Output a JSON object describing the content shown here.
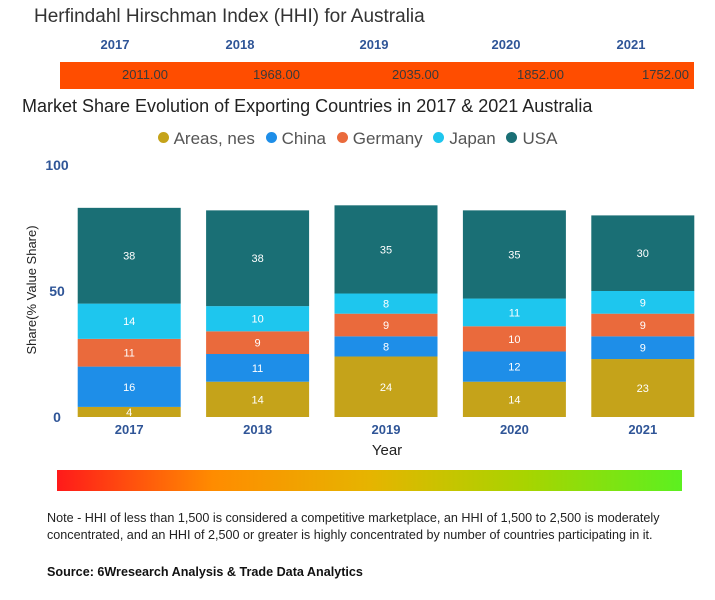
{
  "hhi": {
    "title": "Herfindahl Hirschman Index (HHI) for Australia",
    "years": [
      "2017",
      "2018",
      "2019",
      "2020",
      "2021"
    ],
    "values": [
      "2011.00",
      "1968.00",
      "2035.00",
      "1852.00",
      "1752.00"
    ],
    "bar_color": "#ff4d00"
  },
  "chart_data": {
    "type": "bar",
    "stacked": true,
    "title": "Market Share Evolution of Exporting Countries in 2017 & 2021 Australia",
    "xlabel": "Year",
    "ylabel": "Share(% Value Share)",
    "ylim": [
      0,
      100
    ],
    "yticks": [
      "0",
      "50",
      "100"
    ],
    "categories": [
      "2017",
      "2018",
      "2019",
      "2020",
      "2021"
    ],
    "series": [
      {
        "name": "Areas, nes",
        "color": "#c5a31a",
        "values": [
          4,
          14,
          24,
          14,
          23
        ]
      },
      {
        "name": "China",
        "color": "#1e8ee8",
        "values": [
          16,
          11,
          8,
          12,
          9
        ]
      },
      {
        "name": "Germany",
        "color": "#ea6a3c",
        "values": [
          11,
          9,
          9,
          10,
          9
        ]
      },
      {
        "name": "Japan",
        "color": "#1ec6ee",
        "values": [
          14,
          10,
          8,
          11,
          9
        ]
      },
      {
        "name": "USA",
        "color": "#1a6f75",
        "values": [
          38,
          38,
          35,
          35,
          30
        ]
      }
    ],
    "legend_position": "top-center"
  },
  "gradient_colors": [
    "#ff1a1a",
    "#ff8c00",
    "#e6b400",
    "#a8d400",
    "#5cf020"
  ],
  "footer": {
    "note": "Note - HHI of less than 1,500 is considered a competitive marketplace, an HHI of 1,500 to 2,500 is moderately concentrated, and an HHI of 2,500 or greater is highly concentrated by number of countries participating in it.",
    "source": "Source: 6Wresearch Analysis & Trade Data Analytics"
  }
}
